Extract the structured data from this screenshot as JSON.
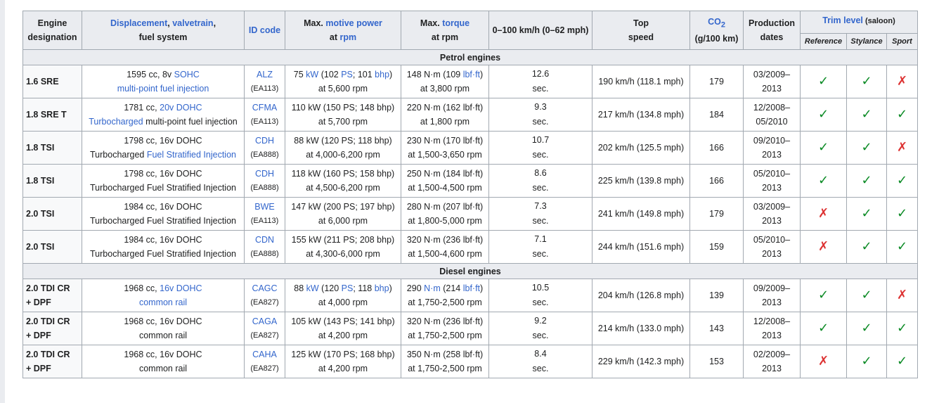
{
  "headers": {
    "engine": [
      "Engine",
      "designation"
    ],
    "displacement": {
      "link1": "Displacement",
      "sep": ", ",
      "link2": "valvetrain",
      "plain": ",",
      "line2": "fuel system"
    },
    "id_code": "ID code",
    "power": {
      "pre": "Max. ",
      "link": "motive power",
      "at": "at ",
      "rpm": "rpm"
    },
    "torque": {
      "pre": "Max. ",
      "link": "torque",
      "line2": "at rpm"
    },
    "accel": "0–100 km/h (0–62 mph)",
    "top_speed": [
      "Top",
      "speed"
    ],
    "co2": {
      "label": "CO",
      "sub": "2",
      "unit": "(g/100 km)"
    },
    "production": [
      "Production",
      "dates"
    ],
    "trim": {
      "link": "Trim level",
      "note": " (saloon)",
      "levels": [
        "Reference",
        "Stylance",
        "Sport"
      ]
    }
  },
  "sections": {
    "petrol": "Petrol engines",
    "diesel": "Diesel engines"
  },
  "rows": [
    {
      "name": [
        "1.6 SRE"
      ],
      "disp1": [
        {
          "t": "1595 cc, 8v "
        },
        {
          "t": "SOHC",
          "l": true
        }
      ],
      "disp2": [
        {
          "t": "multi-point fuel injection",
          "l": true
        }
      ],
      "id": "ALZ",
      "id_sub": "(EA113)",
      "power1": [
        {
          "t": "75 "
        },
        {
          "t": "kW",
          "l": true
        },
        {
          "t": " (102 "
        },
        {
          "t": "PS",
          "l": true
        },
        {
          "t": "; 101 "
        },
        {
          "t": "bhp",
          "l": true
        },
        {
          "t": ")"
        }
      ],
      "power2": "at 5,600 rpm",
      "torque1": [
        {
          "t": "148 N·m (109 "
        },
        {
          "t": "lbf·ft",
          "l": true
        },
        {
          "t": ")"
        }
      ],
      "torque2": "at 3,800 rpm",
      "accel": [
        "12.6",
        "sec."
      ],
      "speed": "190 km/h (118.1 mph)",
      "co2": "179",
      "prod": [
        "03/2009–",
        "2013"
      ],
      "trim": [
        "✓",
        "✓",
        "✗"
      ]
    },
    {
      "name": [
        "1.8 SRE T"
      ],
      "disp1": [
        {
          "t": "1781 cc, "
        },
        {
          "t": "20v",
          "l": true
        },
        {
          "t": " "
        },
        {
          "t": "DOHC",
          "l": true
        }
      ],
      "disp2": [
        {
          "t": "Turbocharged",
          "l": true
        },
        {
          "t": " multi-point fuel injection"
        }
      ],
      "id": "CFMA",
      "id_sub": "(EA113)",
      "power1": [
        {
          "t": "110 kW (150 PS; 148 bhp)"
        }
      ],
      "power2": "at 5,700 rpm",
      "torque1": [
        {
          "t": "220 N·m (162 lbf·ft)"
        }
      ],
      "torque2": "at 1,800 rpm",
      "accel": [
        "9.3",
        "sec."
      ],
      "speed": "217 km/h (134.8 mph)",
      "co2": "184",
      "prod": [
        "12/2008–",
        "05/2010"
      ],
      "trim": [
        "✓",
        "✓",
        "✓"
      ]
    },
    {
      "name": [
        "1.8 TSI"
      ],
      "disp1": [
        {
          "t": "1798 cc, 16v DOHC"
        }
      ],
      "disp2": [
        {
          "t": "Turbocharged "
        },
        {
          "t": "Fuel Stratified Injection",
          "l": true
        }
      ],
      "id": "CDH",
      "id_sub": "(EA888)",
      "power1": [
        {
          "t": "88 kW (120 PS; 118 bhp)"
        }
      ],
      "power2": "at 4,000-6,200 rpm",
      "torque1": [
        {
          "t": "230 N·m (170 lbf·ft)"
        }
      ],
      "torque2": "at 1,500-3,650 rpm",
      "accel": [
        "10.7",
        "sec."
      ],
      "speed": "202 km/h (125.5 mph)",
      "co2": "166",
      "prod": [
        "09/2010–",
        "2013"
      ],
      "trim": [
        "✓",
        "✓",
        "✗"
      ]
    },
    {
      "name": [
        "1.8 TSI"
      ],
      "disp1": [
        {
          "t": "1798 cc, 16v DOHC"
        }
      ],
      "disp2": [
        {
          "t": "Turbocharged Fuel Stratified Injection"
        }
      ],
      "id": "CDH",
      "id_sub": "(EA888)",
      "power1": [
        {
          "t": "118 kW (160 PS; 158 bhp)"
        }
      ],
      "power2": "at 4,500-6,200 rpm",
      "torque1": [
        {
          "t": "250 N·m (184 lbf·ft)"
        }
      ],
      "torque2": "at 1,500-4,500 rpm",
      "accel": [
        "8.6",
        "sec."
      ],
      "speed": "225 km/h (139.8 mph)",
      "co2": "166",
      "prod": [
        "05/2010–",
        "2013"
      ],
      "trim": [
        "✓",
        "✓",
        "✓"
      ]
    },
    {
      "name": [
        "2.0 TSI"
      ],
      "disp1": [
        {
          "t": "1984 cc, 16v DOHC"
        }
      ],
      "disp2": [
        {
          "t": "Turbocharged Fuel Stratified Injection"
        }
      ],
      "id": "BWE",
      "id_sub": "(EA113)",
      "power1": [
        {
          "t": "147 kW (200 PS; 197 bhp)"
        }
      ],
      "power2": "at 6,000 rpm",
      "torque1": [
        {
          "t": "280 N·m (207 lbf·ft)"
        }
      ],
      "torque2": "at 1,800-5,000 rpm",
      "accel": [
        "7.3",
        "sec."
      ],
      "speed": "241 km/h (149.8 mph)",
      "co2": "179",
      "prod": [
        "03/2009–",
        "2013"
      ],
      "trim": [
        "✗",
        "✓",
        "✓"
      ]
    },
    {
      "name": [
        "2.0 TSI"
      ],
      "disp1": [
        {
          "t": "1984 cc, 16v DOHC"
        }
      ],
      "disp2": [
        {
          "t": "Turbocharged Fuel Stratified Injection"
        }
      ],
      "id": "CDN",
      "id_sub": "(EA888)",
      "power1": [
        {
          "t": "155 kW (211 PS; 208 bhp)"
        }
      ],
      "power2": "at 4,300-6,000 rpm",
      "torque1": [
        {
          "t": "320 N·m (236 lbf·ft)"
        }
      ],
      "torque2": "at 1,500-4,600 rpm",
      "accel": [
        "7.1",
        "sec."
      ],
      "speed": "244 km/h (151.6 mph)",
      "co2": "159",
      "prod": [
        "05/2010–",
        "2013"
      ],
      "trim": [
        "✗",
        "✓",
        "✓"
      ]
    },
    {
      "section": "diesel"
    },
    {
      "name": [
        "2.0 TDI CR",
        "+ DPF"
      ],
      "disp1": [
        {
          "t": "1968 cc, "
        },
        {
          "t": "16v DOHC",
          "l": true
        }
      ],
      "disp2": [
        {
          "t": "common rail",
          "l": true
        }
      ],
      "id": "CAGC",
      "id_sub": "(EA827)",
      "power1": [
        {
          "t": "88 "
        },
        {
          "t": "kW",
          "l": true
        },
        {
          "t": " (120 "
        },
        {
          "t": "PS",
          "l": true
        },
        {
          "t": "; 118 "
        },
        {
          "t": "bhp",
          "l": true
        },
        {
          "t": ")"
        }
      ],
      "power2": "at 4,000 rpm",
      "torque1": [
        {
          "t": "290 "
        },
        {
          "t": "N·m",
          "l": true
        },
        {
          "t": " (214 "
        },
        {
          "t": "lbf·ft",
          "l": true
        },
        {
          "t": ")"
        }
      ],
      "torque2": "at 1,750-2,500 rpm",
      "accel": [
        "10.5",
        "sec."
      ],
      "speed": "204 km/h (126.8 mph)",
      "co2": "139",
      "prod": [
        "09/2009–",
        "2013"
      ],
      "trim": [
        "✓",
        "✓",
        "✗"
      ]
    },
    {
      "name": [
        "2.0 TDI CR",
        "+ DPF"
      ],
      "disp1": [
        {
          "t": "1968 cc, 16v DOHC"
        }
      ],
      "disp2": [
        {
          "t": "common rail"
        }
      ],
      "id": "CAGA",
      "id_sub": "(EA827)",
      "power1": [
        {
          "t": "105 kW (143 PS; 141 bhp)"
        }
      ],
      "power2": "at 4,200 rpm",
      "torque1": [
        {
          "t": "320 N·m (236 lbf·ft)"
        }
      ],
      "torque2": "at 1,750-2,500 rpm",
      "accel": [
        "9.2",
        "sec."
      ],
      "speed": "214 km/h (133.0 mph)",
      "co2": "143",
      "prod": [
        "12/2008–",
        "2013"
      ],
      "trim": [
        "✓",
        "✓",
        "✓"
      ]
    },
    {
      "name": [
        "2.0 TDI CR",
        "+ DPF"
      ],
      "disp1": [
        {
          "t": "1968 cc, 16v DOHC"
        }
      ],
      "disp2": [
        {
          "t": "common rail"
        }
      ],
      "id": "CAHA",
      "id_sub": "(EA827)",
      "power1": [
        {
          "t": "125 kW (170 PS; 168 bhp)"
        }
      ],
      "power2": "at 4,200 rpm",
      "torque1": [
        {
          "t": "350 N·m (258 lbf·ft)"
        }
      ],
      "torque2": "at 1,750-2,500 rpm",
      "accel": [
        "8.4",
        "sec."
      ],
      "speed": "229 km/h (142.3 mph)",
      "co2": "153",
      "prod": [
        "02/2009–",
        "2013"
      ],
      "trim": [
        "✗",
        "✓",
        "✓"
      ]
    }
  ]
}
